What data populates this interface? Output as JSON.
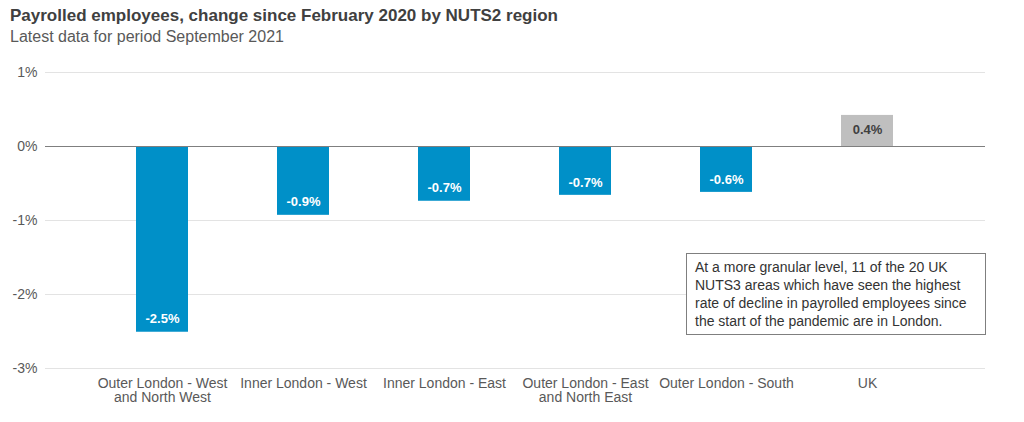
{
  "chart_data": {
    "type": "bar",
    "title": "Payrolled employees, change since February 2020 by NUTS2 region",
    "subtitle": "Latest data for period September 2021",
    "categories": [
      "Outer London - West and North West",
      "Inner London - West",
      "Inner London - East",
      "Outer London - East and North East",
      "Outer London - South",
      "UK"
    ],
    "values": [
      -2.51,
      -0.93,
      -0.74,
      -0.66,
      -0.62,
      0.42
    ],
    "value_labels": [
      "-2.5%",
      "-0.9%",
      "-0.7%",
      "-0.7%",
      "-0.6%",
      "0.4%"
    ],
    "colors": [
      "#0090c8",
      "#0090c8",
      "#0090c8",
      "#0090c8",
      "#0090c8",
      "#bfbfbf"
    ],
    "ylim": [
      -3,
      1
    ],
    "yticks": [
      {
        "value": -3,
        "label": "-3%"
      },
      {
        "value": -2,
        "label": "-2%"
      },
      {
        "value": -1,
        "label": "-1%"
      },
      {
        "value": 0,
        "label": "0%"
      },
      {
        "value": 1,
        "label": "1%"
      }
    ],
    "grid": true,
    "data_labels": true,
    "annotation": "At a more granular level, 11 of the 20 UK NUTS3 areas which have seen the highest rate of decline in payrolled employees since the start of the pandemic are in London."
  }
}
